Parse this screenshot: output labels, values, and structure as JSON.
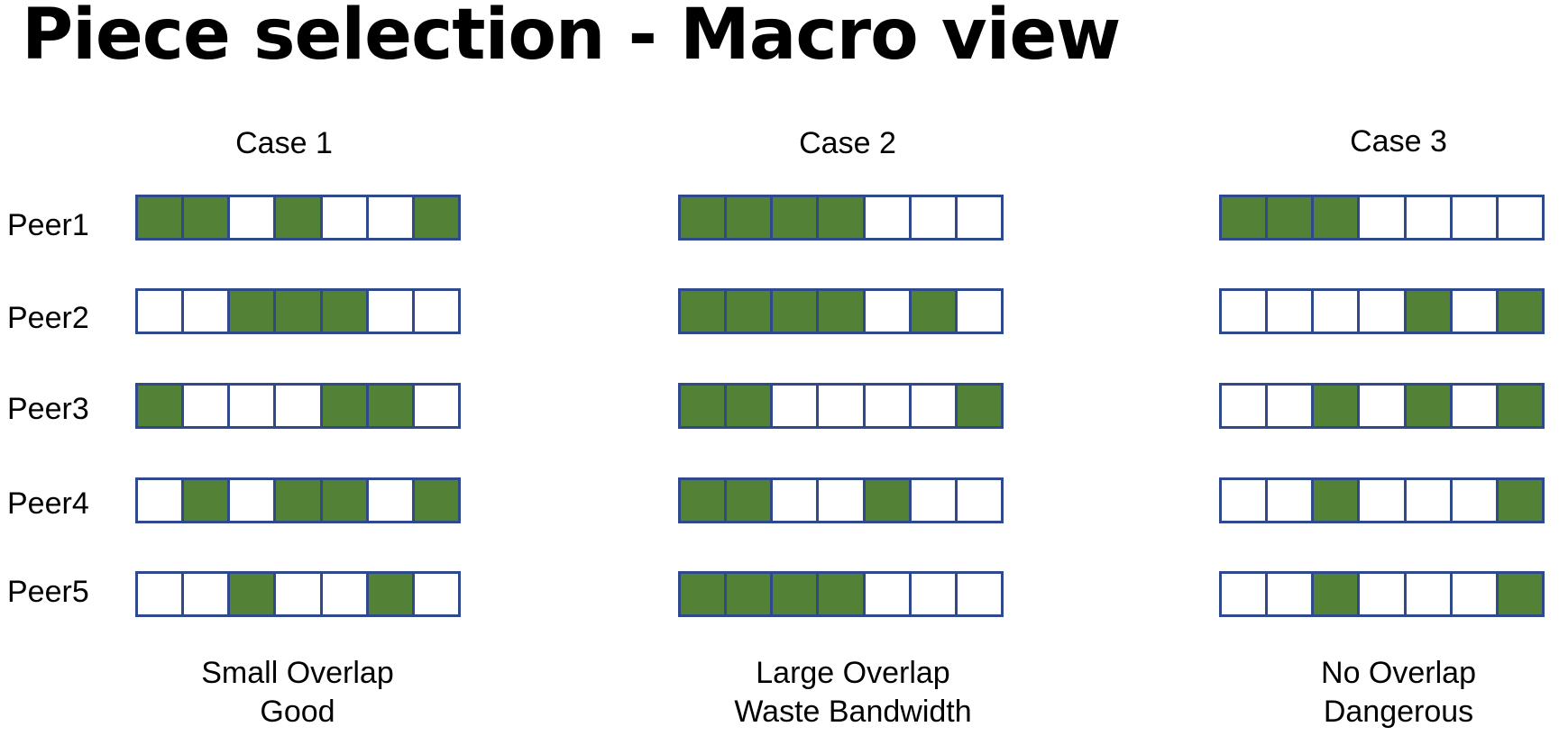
{
  "title": "Piece selection - Macro view",
  "peers": [
    "Peer1",
    "Peer2",
    "Peer3",
    "Peer4",
    "Peer5"
  ],
  "colors": {
    "have": "#538135",
    "empty": "#ffffff",
    "border": "#2e4a8c"
  },
  "cases": [
    {
      "label": "Case 1",
      "caption_line1": "Small Overlap",
      "caption_line2": "Good",
      "rows": [
        [
          1,
          1,
          0,
          1,
          0,
          0,
          1
        ],
        [
          0,
          0,
          1,
          1,
          1,
          0,
          0
        ],
        [
          1,
          0,
          0,
          0,
          1,
          1,
          0
        ],
        [
          0,
          1,
          0,
          1,
          1,
          0,
          1
        ],
        [
          0,
          0,
          1,
          0,
          0,
          1,
          0
        ]
      ]
    },
    {
      "label": "Case 2",
      "caption_line1": "Large Overlap",
      "caption_line2": "Waste Bandwidth",
      "rows": [
        [
          1,
          1,
          1,
          1,
          0,
          0,
          0
        ],
        [
          1,
          1,
          1,
          1,
          0,
          1,
          0
        ],
        [
          1,
          1,
          0,
          0,
          0,
          0,
          1
        ],
        [
          1,
          1,
          0,
          0,
          1,
          0,
          0
        ],
        [
          1,
          1,
          1,
          1,
          0,
          0,
          0
        ]
      ]
    },
    {
      "label": "Case 3",
      "caption_line1": "No Overlap",
      "caption_line2": "Dangerous",
      "rows": [
        [
          1,
          1,
          1,
          0,
          0,
          0,
          0
        ],
        [
          0,
          0,
          0,
          0,
          1,
          0,
          1
        ],
        [
          0,
          0,
          1,
          0,
          1,
          0,
          1
        ],
        [
          0,
          0,
          1,
          0,
          0,
          0,
          1
        ],
        [
          0,
          0,
          1,
          0,
          0,
          0,
          1
        ]
      ]
    }
  ]
}
